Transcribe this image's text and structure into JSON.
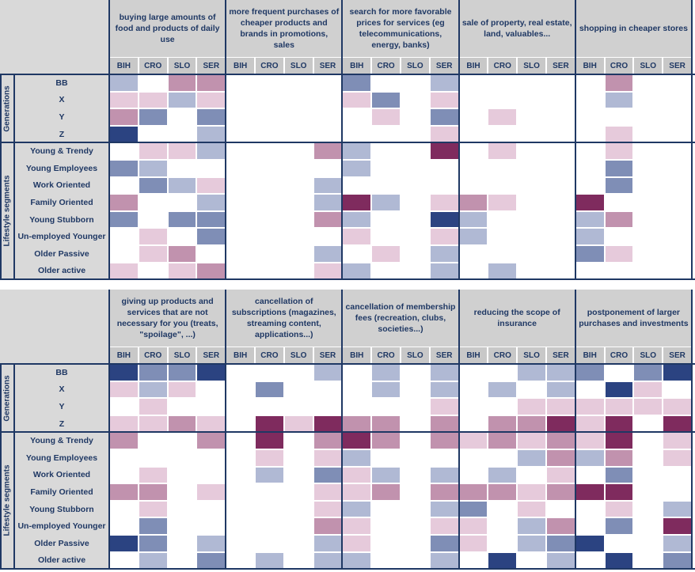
{
  "countries": [
    "BIH",
    "CRO",
    "SLO",
    "SER"
  ],
  "groups": [
    {
      "label": "Generations",
      "rows": [
        "BB",
        "X",
        "Y",
        "Z"
      ]
    },
    {
      "label": "Lifestyle segments",
      "rows": [
        "Young & Trendy",
        "Young Employees",
        "Work Oriented",
        "Family Oriented",
        "Young Stubborn",
        "Un-employed Younger",
        "Older Passive",
        "Older active"
      ]
    }
  ],
  "palette": {
    "0": "#ffffff",
    "1": "#e6cadb",
    "2": "#c192ae",
    "3": "#7f2b5e",
    "4": "#b0b9d4",
    "5": "#7f8eb6",
    "6": "#2b4381"
  },
  "chart_data": [
    {
      "type": "heatmap",
      "columns": [
        "buying large amounts of food and products of daily use",
        "more frequent purchases of cheaper products and brands in promotions, sales",
        "search for more favorable prices for services (eg telecommunications, energy, banks)",
        "sale of property, real estate, land, valuables...",
        "shopping in cheaper stores"
      ],
      "rows": [
        "BB",
        "X",
        "Y",
        "Z",
        "Young & Trendy",
        "Young Employees",
        "Work Oriented",
        "Family Oriented",
        "Young Stubborn",
        "Un-employed Younger",
        "Older Passive",
        "Older active"
      ],
      "cells": [
        [
          [
            4,
            0,
            2,
            2
          ],
          [
            0,
            0,
            0,
            0
          ],
          [
            5,
            0,
            0,
            4
          ],
          [
            0,
            0,
            0,
            0
          ],
          [
            0,
            2,
            0,
            0
          ]
        ],
        [
          [
            1,
            1,
            4,
            1
          ],
          [
            0,
            0,
            0,
            0
          ],
          [
            1,
            5,
            0,
            1
          ],
          [
            0,
            0,
            0,
            0
          ],
          [
            0,
            4,
            0,
            0
          ]
        ],
        [
          [
            2,
            5,
            0,
            5
          ],
          [
            0,
            0,
            0,
            0
          ],
          [
            0,
            1,
            0,
            5
          ],
          [
            0,
            1,
            0,
            0
          ],
          [
            0,
            0,
            0,
            0
          ]
        ],
        [
          [
            6,
            0,
            0,
            4
          ],
          [
            0,
            0,
            0,
            0
          ],
          [
            0,
            0,
            0,
            1
          ],
          [
            0,
            0,
            0,
            0
          ],
          [
            0,
            1,
            0,
            0
          ]
        ],
        [
          [
            0,
            1,
            1,
            4
          ],
          [
            0,
            0,
            0,
            2
          ],
          [
            4,
            0,
            0,
            3
          ],
          [
            0,
            1,
            0,
            0
          ],
          [
            0,
            1,
            0,
            0
          ]
        ],
        [
          [
            5,
            4,
            0,
            0
          ],
          [
            0,
            0,
            0,
            0
          ],
          [
            4,
            0,
            0,
            0
          ],
          [
            0,
            0,
            0,
            0
          ],
          [
            0,
            5,
            0,
            0
          ]
        ],
        [
          [
            0,
            5,
            4,
            1
          ],
          [
            0,
            0,
            0,
            4
          ],
          [
            0,
            0,
            0,
            0
          ],
          [
            0,
            0,
            0,
            0
          ],
          [
            0,
            5,
            0,
            0
          ]
        ],
        [
          [
            2,
            0,
            0,
            4
          ],
          [
            0,
            0,
            0,
            4
          ],
          [
            3,
            4,
            0,
            1
          ],
          [
            2,
            1,
            0,
            0
          ],
          [
            3,
            0,
            0,
            0
          ]
        ],
        [
          [
            5,
            0,
            5,
            5
          ],
          [
            0,
            0,
            0,
            2
          ],
          [
            4,
            0,
            0,
            6
          ],
          [
            4,
            0,
            0,
            0
          ],
          [
            4,
            2,
            0,
            0
          ]
        ],
        [
          [
            0,
            1,
            0,
            5
          ],
          [
            0,
            0,
            0,
            0
          ],
          [
            1,
            0,
            0,
            1
          ],
          [
            4,
            0,
            0,
            0
          ],
          [
            4,
            0,
            0,
            0
          ]
        ],
        [
          [
            0,
            1,
            2,
            0
          ],
          [
            0,
            0,
            0,
            4
          ],
          [
            0,
            1,
            0,
            4
          ],
          [
            0,
            0,
            0,
            0
          ],
          [
            5,
            1,
            0,
            0
          ]
        ],
        [
          [
            1,
            0,
            1,
            2
          ],
          [
            0,
            0,
            0,
            1
          ],
          [
            4,
            0,
            0,
            4
          ],
          [
            0,
            4,
            0,
            0
          ],
          [
            0,
            0,
            0,
            0
          ]
        ]
      ]
    },
    {
      "type": "heatmap",
      "columns": [
        "giving up products and services that are not necessary for you (treats, \"spoilage\", ...)",
        "cancellation of subscriptions (magazines, streaming content, applications...)",
        "cancellation of membership fees (recreation, clubs, societies...)",
        "reducing the scope of insurance",
        "postponement of larger purchases and investments"
      ],
      "rows": [
        "BB",
        "X",
        "Y",
        "Z",
        "Young & Trendy",
        "Young Employees",
        "Work Oriented",
        "Family Oriented",
        "Young Stubborn",
        "Un-employed Younger",
        "Older Passive",
        "Older active"
      ],
      "cells": [
        [
          [
            6,
            5,
            5,
            6
          ],
          [
            0,
            0,
            0,
            4
          ],
          [
            0,
            4,
            0,
            4
          ],
          [
            0,
            0,
            4,
            4
          ],
          [
            5,
            0,
            5,
            6
          ]
        ],
        [
          [
            1,
            4,
            1,
            0
          ],
          [
            0,
            5,
            0,
            0
          ],
          [
            0,
            4,
            0,
            4
          ],
          [
            0,
            4,
            0,
            4
          ],
          [
            0,
            6,
            1,
            0
          ]
        ],
        [
          [
            0,
            1,
            0,
            0
          ],
          [
            0,
            0,
            0,
            0
          ],
          [
            0,
            0,
            0,
            1
          ],
          [
            0,
            0,
            1,
            1
          ],
          [
            1,
            1,
            1,
            1
          ]
        ],
        [
          [
            1,
            1,
            2,
            1
          ],
          [
            0,
            3,
            1,
            3
          ],
          [
            2,
            2,
            0,
            2
          ],
          [
            0,
            2,
            2,
            3
          ],
          [
            1,
            3,
            0,
            3
          ]
        ],
        [
          [
            2,
            0,
            0,
            2
          ],
          [
            0,
            3,
            0,
            2
          ],
          [
            3,
            2,
            0,
            2
          ],
          [
            1,
            2,
            1,
            2
          ],
          [
            1,
            3,
            0,
            1
          ]
        ],
        [
          [
            0,
            0,
            0,
            0
          ],
          [
            0,
            1,
            0,
            1
          ],
          [
            4,
            0,
            0,
            0
          ],
          [
            0,
            0,
            4,
            2
          ],
          [
            4,
            2,
            0,
            1
          ]
        ],
        [
          [
            0,
            1,
            0,
            0
          ],
          [
            0,
            4,
            0,
            5
          ],
          [
            1,
            4,
            0,
            4
          ],
          [
            0,
            4,
            0,
            1
          ],
          [
            0,
            5,
            0,
            0
          ]
        ],
        [
          [
            2,
            2,
            0,
            1
          ],
          [
            0,
            0,
            0,
            1
          ],
          [
            1,
            2,
            0,
            2
          ],
          [
            2,
            2,
            1,
            2
          ],
          [
            3,
            3,
            0,
            0
          ]
        ],
        [
          [
            0,
            1,
            0,
            0
          ],
          [
            0,
            0,
            0,
            1
          ],
          [
            4,
            0,
            0,
            4
          ],
          [
            5,
            0,
            1,
            0
          ],
          [
            0,
            1,
            0,
            4
          ]
        ],
        [
          [
            0,
            5,
            0,
            0
          ],
          [
            0,
            0,
            0,
            2
          ],
          [
            1,
            0,
            0,
            1
          ],
          [
            1,
            0,
            4,
            2
          ],
          [
            0,
            5,
            0,
            3
          ]
        ],
        [
          [
            6,
            5,
            0,
            4
          ],
          [
            0,
            0,
            0,
            4
          ],
          [
            1,
            0,
            0,
            5
          ],
          [
            1,
            0,
            4,
            5
          ],
          [
            6,
            0,
            0,
            4
          ]
        ],
        [
          [
            0,
            4,
            0,
            5
          ],
          [
            0,
            4,
            0,
            4
          ],
          [
            4,
            0,
            0,
            4
          ],
          [
            0,
            6,
            0,
            4
          ],
          [
            0,
            6,
            0,
            5
          ]
        ]
      ]
    }
  ]
}
